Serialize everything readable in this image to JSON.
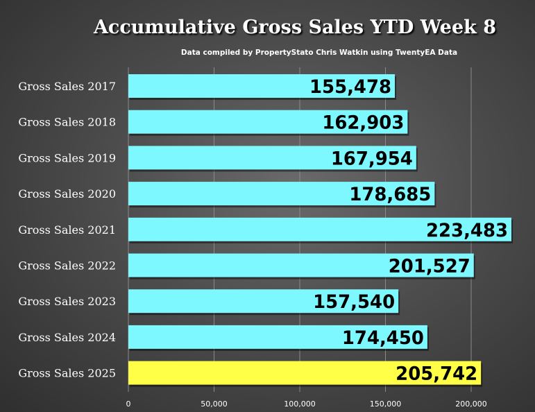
{
  "chart_data": {
    "type": "bar",
    "orientation": "horizontal",
    "title": "Accumulative Gross Sales YTD Week 8",
    "subtitle": "Data compiled by PropertyStato Chris Watkin using TwentyEA Data",
    "categories": [
      "Gross Sales 2017",
      "Gross Sales 2018",
      "Gross Sales 2019",
      "Gross Sales 2020",
      "Gross Sales 2021",
      "Gross Sales 2022",
      "Gross Sales 2023",
      "Gross Sales 2024",
      "Gross Sales 2025"
    ],
    "values": [
      155478,
      162903,
      167954,
      178685,
      223483,
      201527,
      157540,
      174450,
      205742
    ],
    "value_labels": [
      "155,478",
      "162,903",
      "167,954",
      "178,685",
      "223,483",
      "201,527",
      "157,540",
      "174,450",
      "205,742"
    ],
    "bar_colors": [
      "#7ef8ff",
      "#7ef8ff",
      "#7ef8ff",
      "#7ef8ff",
      "#7ef8ff",
      "#7ef8ff",
      "#7ef8ff",
      "#7ef8ff",
      "#ffff47"
    ],
    "xlim": [
      0,
      230000
    ],
    "xticks": [
      0,
      50000,
      100000,
      150000,
      200000
    ],
    "xtick_labels": [
      "0",
      "50,000",
      "100,000",
      "150,000",
      "200,000"
    ],
    "grid": "vertical",
    "legend": "none"
  }
}
